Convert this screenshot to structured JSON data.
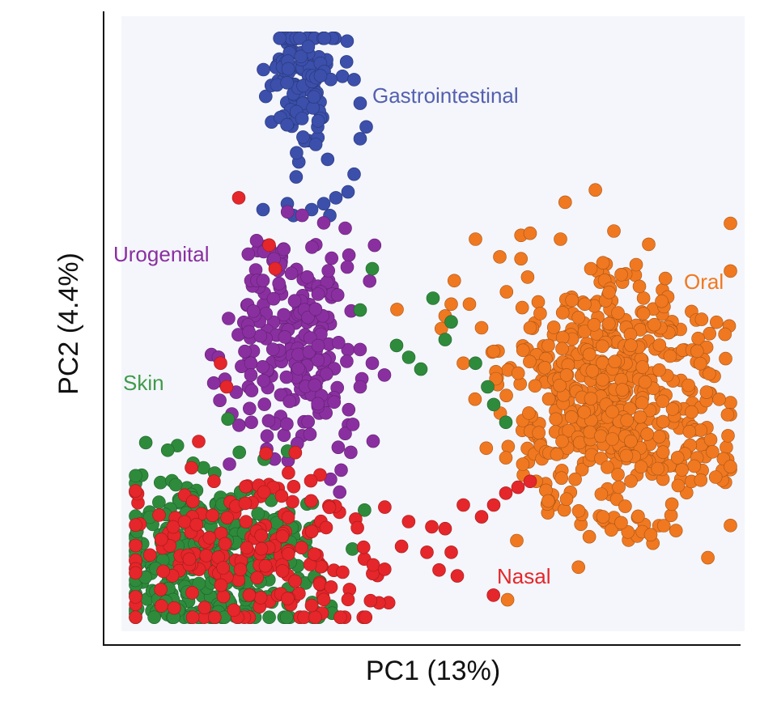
{
  "chart_data": {
    "type": "scatter",
    "xlabel": "PC1 (13%)",
    "ylabel": "PC2 (4.4%)",
    "xlim": [
      0,
      100
    ],
    "ylim": [
      0,
      100
    ],
    "grid": false,
    "legend": "none",
    "series": [
      {
        "name": "Skin",
        "color": "#2e8b3c",
        "cluster": {
          "center": [
            14,
            12
          ],
          "spread": [
            8,
            8
          ],
          "count": 360
        },
        "extra_points": [
          [
            50,
            55
          ],
          [
            53,
            51
          ],
          [
            46,
            45
          ],
          [
            38,
            53
          ],
          [
            52,
            48
          ],
          [
            40,
            60
          ],
          [
            44,
            47
          ],
          [
            48,
            43
          ],
          [
            57,
            44
          ],
          [
            59,
            40
          ],
          [
            60,
            37
          ],
          [
            62,
            34
          ]
        ]
      },
      {
        "name": "Nasal",
        "color": "#e5262a",
        "cluster": {
          "center": [
            20,
            12
          ],
          "spread": [
            12,
            8
          ],
          "count": 200
        },
        "extra_points": [
          [
            18,
            72
          ],
          [
            23,
            64
          ],
          [
            24,
            60
          ],
          [
            16,
            40
          ],
          [
            15,
            44
          ],
          [
            58,
            18
          ],
          [
            60,
            20
          ],
          [
            62,
            22
          ],
          [
            64,
            23
          ],
          [
            66,
            24
          ],
          [
            55,
            20
          ],
          [
            52,
            16
          ],
          [
            53,
            12
          ],
          [
            54,
            8
          ],
          [
            51,
            9
          ],
          [
            49,
            12
          ],
          [
            36,
            4
          ],
          [
            30,
            3
          ],
          [
            32,
            4
          ]
        ]
      },
      {
        "name": "Urogenital",
        "color": "#8a2fa0",
        "cluster": {
          "center": [
            28,
            47
          ],
          "spread": [
            5,
            10
          ],
          "count": 220
        },
        "extra_points": [
          [
            20,
            58
          ],
          [
            21,
            58
          ],
          [
            22,
            58
          ],
          [
            19,
            46
          ],
          [
            20,
            44
          ],
          [
            20,
            42
          ],
          [
            40,
            44
          ],
          [
            42,
            42
          ],
          [
            38,
            40
          ]
        ]
      },
      {
        "name": "Gastrointestinal",
        "color": "#3b4fab",
        "cluster": {
          "center": [
            28,
            93
          ],
          "spread": [
            2.5,
            6
          ],
          "count": 140
        },
        "extra_points": [
          [
            22,
            70
          ],
          [
            26,
            71
          ],
          [
            27,
            69
          ],
          [
            30,
            70
          ],
          [
            32,
            71
          ],
          [
            33,
            69
          ],
          [
            34,
            72
          ],
          [
            36,
            73
          ],
          [
            37,
            76
          ],
          [
            38,
            82
          ],
          [
            39,
            84
          ],
          [
            38,
            88
          ],
          [
            37,
            92
          ]
        ]
      },
      {
        "name": "Oral",
        "color": "#f07820",
        "cluster": {
          "center": [
            80,
            37
          ],
          "spread": [
            9,
            11
          ],
          "count": 560
        },
        "extra_points": [
          [
            57,
            65
          ],
          [
            61,
            62
          ],
          [
            66,
            66
          ],
          [
            71,
            65
          ],
          [
            76,
            60
          ],
          [
            78,
            61
          ],
          [
            81,
            59
          ],
          [
            84,
            57
          ],
          [
            79,
            56
          ],
          [
            75,
            54
          ],
          [
            52,
            52
          ],
          [
            53,
            54
          ],
          [
            56,
            54
          ],
          [
            58,
            50
          ],
          [
            60,
            46
          ],
          [
            66,
            50
          ],
          [
            69,
            47
          ],
          [
            72,
            42
          ],
          [
            76,
            38
          ],
          [
            55,
            44
          ],
          [
            62,
            28
          ],
          [
            67,
            24
          ],
          [
            72,
            21
          ],
          [
            74,
            19
          ],
          [
            78,
            18
          ],
          [
            81,
            17
          ]
        ]
      }
    ],
    "annotations": [
      {
        "text": "Gastrointestinal",
        "color": "#5460b0"
      },
      {
        "text": "Urogenital",
        "color": "#8a2fa0"
      },
      {
        "text": "Skin",
        "color": "#3f9a4a"
      },
      {
        "text": "Oral",
        "color": "#f07820"
      },
      {
        "text": "Nasal",
        "color": "#e5262a"
      }
    ]
  }
}
